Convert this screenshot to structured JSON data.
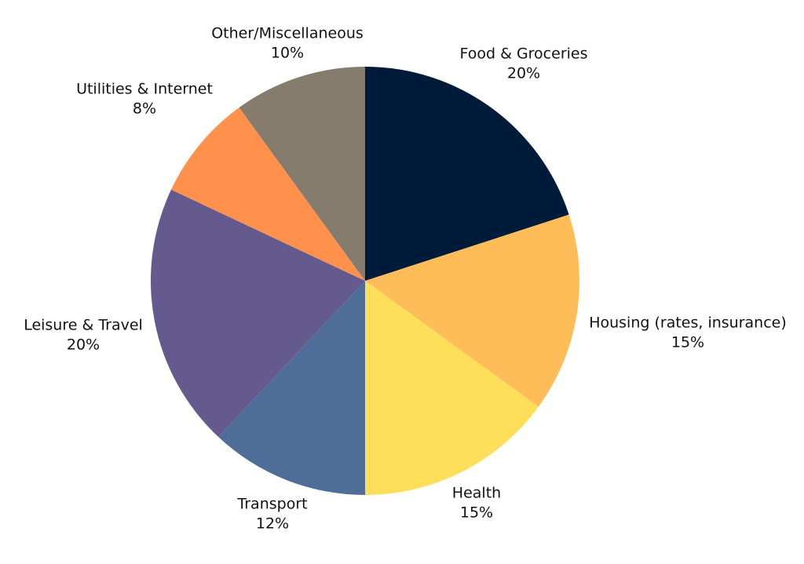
{
  "chart_data": {
    "type": "pie",
    "title": "",
    "start_angle_deg": 0,
    "direction": "clockwise",
    "slices": [
      {
        "name": "Food & Groceries",
        "value": 20,
        "label": "20%",
        "color": "#001b3a"
      },
      {
        "name": "Housing (rates, insurance)",
        "value": 15,
        "label": "15%",
        "color": "#ffbd59"
      },
      {
        "name": "Health",
        "value": 15,
        "label": "15%",
        "color": "#ffde59"
      },
      {
        "name": "Transport",
        "value": 12,
        "label": "12%",
        "color": "#4e6e99"
      },
      {
        "name": "Leisure & Travel",
        "value": 20,
        "label": "20%",
        "color": "#645a8e"
      },
      {
        "name": "Utilities & Internet",
        "value": 8,
        "label": "8%",
        "color": "#ff914d"
      },
      {
        "name": "Other/Miscellaneous",
        "value": 10,
        "label": "10%",
        "color": "#857c6e"
      }
    ]
  }
}
